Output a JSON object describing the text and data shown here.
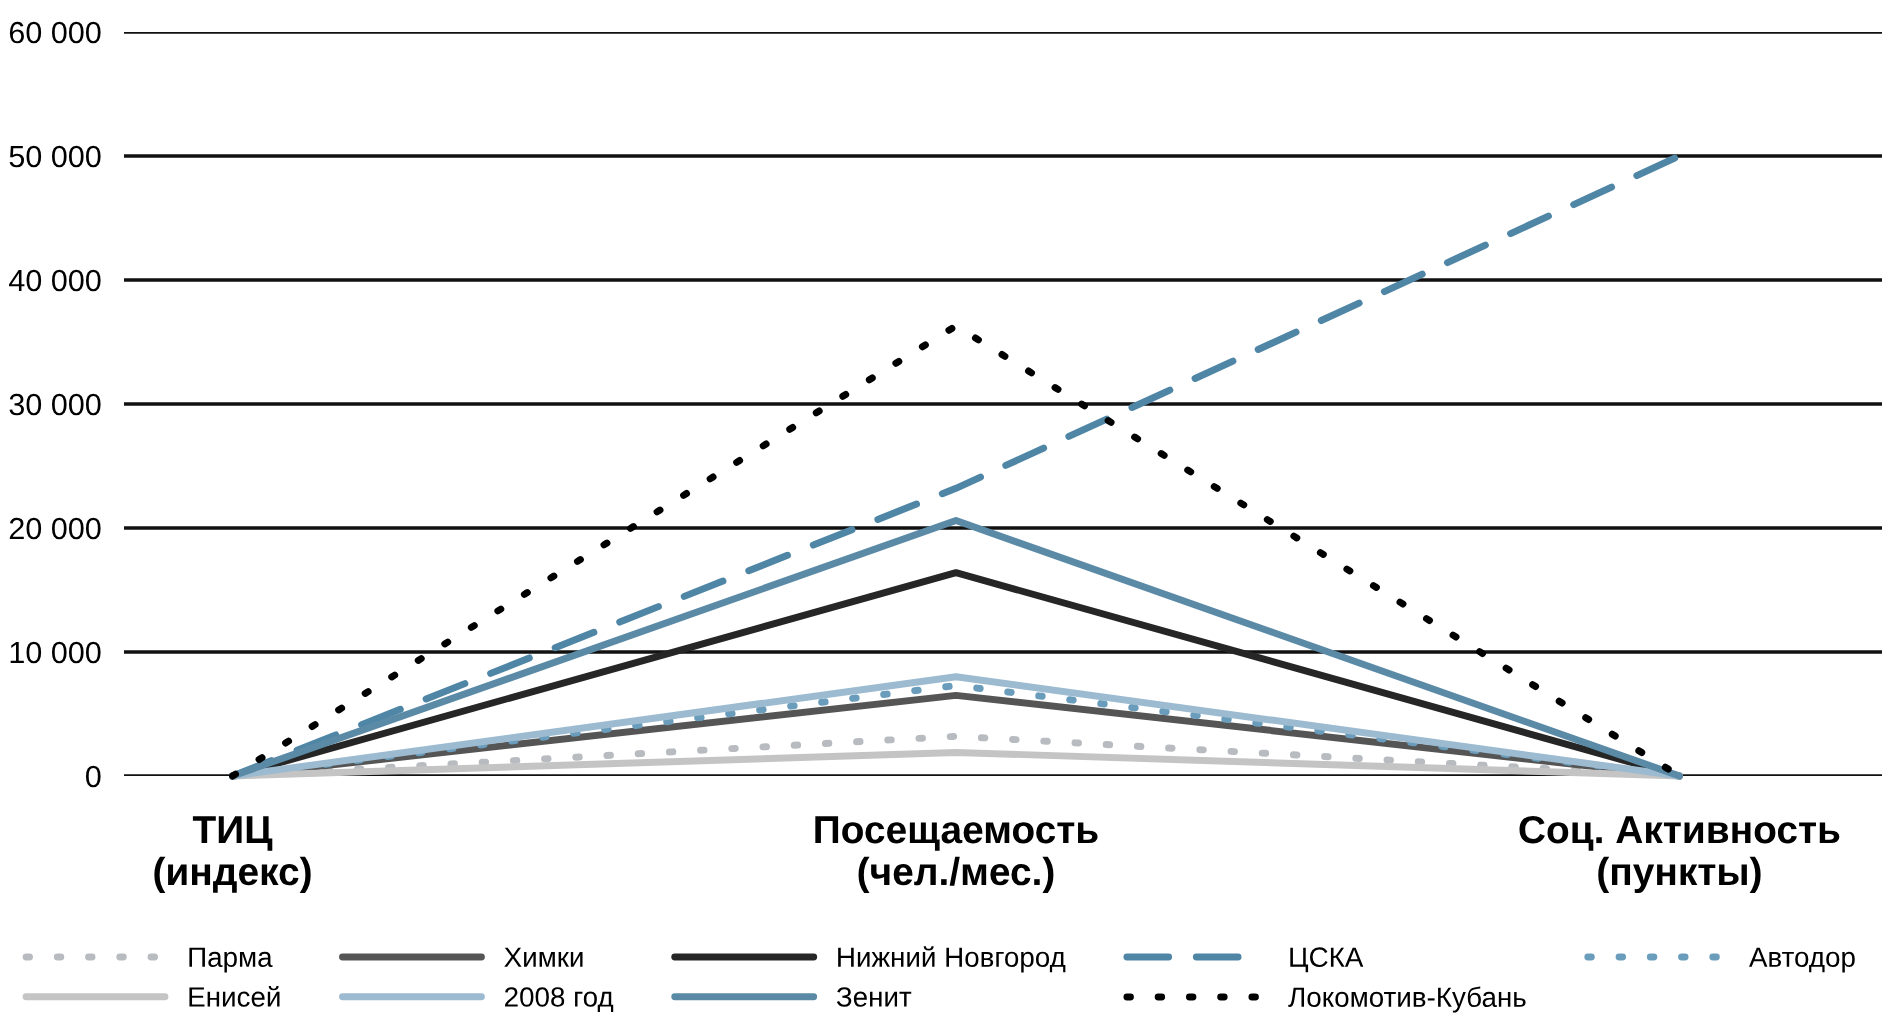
{
  "chart_data": {
    "type": "line",
    "categories": [
      "ТИЦ\n(индекс)",
      "Посещаемость\n(чел./мес.)",
      "Соц. Активность\n(пункты)"
    ],
    "ylim": [
      0,
      60000
    ],
    "yticks": [
      0,
      {
        "value": 10000,
        "label": "10 000"
      },
      {
        "value": 20000,
        "label": "20 000"
      },
      {
        "value": 30000,
        "label": "30 000"
      },
      {
        "value": 40000,
        "label": "40 000"
      },
      {
        "value": 50000,
        "label": "50 000"
      },
      {
        "value": 60000,
        "label": "60 000"
      }
    ],
    "grid": "y",
    "legend": "bottom",
    "series": [
      {
        "name": "Парма",
        "color": "#b8bcc0",
        "line_style": "dotted",
        "values": [
          0,
          3200,
          0
        ]
      },
      {
        "name": "Химки",
        "color": "#555555",
        "line_style": "solid",
        "values": [
          0,
          6500,
          0
        ]
      },
      {
        "name": "Нижний Новгород",
        "color": "#262626",
        "line_style": "solid",
        "values": [
          0,
          16400,
          0
        ]
      },
      {
        "name": "ЦСКА",
        "color": "#4f86a6",
        "line_style": "dashed",
        "values": [
          0,
          23200,
          50000
        ]
      },
      {
        "name": "Автодор",
        "color": "#6a9dbb",
        "line_style": "dotted",
        "values": [
          0,
          7300,
          0
        ]
      },
      {
        "name": "Енисей",
        "color": "#c4c4c4",
        "line_style": "solid",
        "values": [
          0,
          1900,
          0
        ]
      },
      {
        "name": "2008 год",
        "color": "#9dbbd0",
        "line_style": "solid",
        "values": [
          0,
          8000,
          0
        ]
      },
      {
        "name": "Зенит",
        "color": "#5a8aa6",
        "line_style": "solid",
        "values": [
          0,
          20600,
          0
        ]
      },
      {
        "name": "Локомотив-Кубань",
        "color": "#000000",
        "line_style": "dotted",
        "values": [
          0,
          36300,
          0
        ]
      }
    ]
  }
}
